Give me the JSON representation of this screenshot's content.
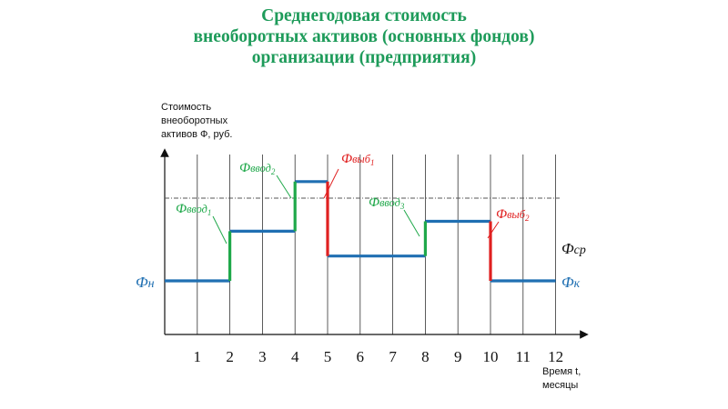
{
  "title_lines": [
    "Среднегодовая стоимость",
    "внеоборотных активов (основных фондов)",
    "организации (предприятия)"
  ],
  "chart_data": {
    "type": "line",
    "title": "Среднегодовая стоимость внеоборотных активов (основных фондов) организации (предприятия)",
    "ylabel_lines": [
      "Стоимость",
      "внеоборотных",
      "активов Ф, руб."
    ],
    "xlabel_lines": [
      "Время t,",
      "месяцы"
    ],
    "xlim": [
      0,
      13
    ],
    "ylim": [
      0,
      10
    ],
    "x_ticks": [
      "1",
      "2",
      "3",
      "4",
      "5",
      "6",
      "7",
      "8",
      "9",
      "10",
      "11",
      "12"
    ],
    "average_level": 5.0,
    "segments": [
      {
        "x0": 0,
        "x1": 2,
        "y": 2.5
      },
      {
        "x0": 2,
        "x1": 4,
        "y": 4.0
      },
      {
        "x0": 4,
        "x1": 5,
        "y": 5.5
      },
      {
        "x0": 5,
        "x1": 8,
        "y": 3.25
      },
      {
        "x0": 8,
        "x1": 10,
        "y": 4.3
      },
      {
        "x0": 10,
        "x1": 12,
        "y": 2.5
      }
    ],
    "changes": [
      {
        "x": 2,
        "from": 2.5,
        "to": 4.0,
        "kind": "ввод"
      },
      {
        "x": 4,
        "from": 4.0,
        "to": 5.5,
        "kind": "ввод"
      },
      {
        "x": 5,
        "from": 5.5,
        "to": 3.25,
        "kind": "выб"
      },
      {
        "x": 8,
        "from": 3.25,
        "to": 4.3,
        "kind": "ввод"
      },
      {
        "x": 10,
        "from": 4.3,
        "to": 2.5,
        "kind": "выб"
      }
    ],
    "labels": {
      "start": {
        "base": "Ф",
        "sub": "н"
      },
      "end": {
        "base": "Ф",
        "sub": "к"
      },
      "average": {
        "base": "Ф",
        "sub": "ср"
      },
      "in1": {
        "base": "Ф",
        "sub": "ввод",
        "idx": "1"
      },
      "in2": {
        "base": "Ф",
        "sub": "ввод",
        "idx": "2"
      },
      "in3": {
        "base": "Ф",
        "sub": "ввод",
        "idx": "3"
      },
      "out1": {
        "base": "Ф",
        "sub": "выб",
        "idx": "1"
      },
      "out2": {
        "base": "Ф",
        "sub": "выб",
        "idx": "2"
      }
    },
    "colors": {
      "level": "#1f6fb2",
      "input": "#1fa84a",
      "output": "#e02020",
      "title": "#1e9b5a",
      "grid": "#333333",
      "average_line": "#555555"
    }
  }
}
